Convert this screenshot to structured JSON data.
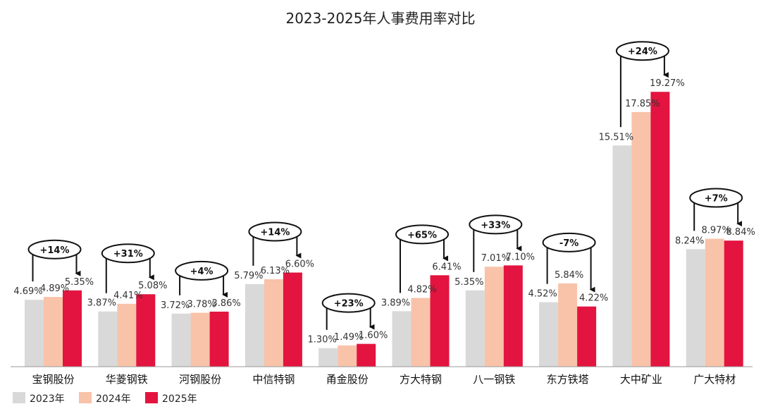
{
  "chart_data": {
    "type": "bar",
    "title": "2023-2025年人事费用率对比",
    "categories": [
      "宝钢股份",
      "华菱钢铁",
      "河钢股份",
      "中信特钢",
      "甬金股份",
      "方大特钢",
      "八一钢铁",
      "东方铁塔",
      "大中矿业",
      "广大特材"
    ],
    "series": [
      {
        "name": "2023年",
        "color": "#d9d9d9",
        "values": [
          4.69,
          3.87,
          3.72,
          5.79,
          1.3,
          3.89,
          5.35,
          4.52,
          15.51,
          8.24
        ],
        "labels": [
          "4.69%",
          "3.87%",
          "3.72%",
          "5.79%",
          "1.30%",
          "3.89%",
          "5.35%",
          "4.52%",
          "15.51%",
          "8.24%"
        ]
      },
      {
        "name": "2024年",
        "color": "#f8c3a9",
        "values": [
          4.89,
          4.41,
          3.78,
          6.13,
          1.49,
          4.82,
          7.01,
          5.84,
          17.85,
          8.97
        ],
        "labels": [
          "4.89%",
          "4.41%",
          "3.78%",
          "6.13%",
          "1.49%",
          "4.82%",
          "7.01%",
          "5.84%",
          "17.85%",
          "8.97%"
        ]
      },
      {
        "name": "2025年",
        "color": "#e3143f",
        "values": [
          5.35,
          5.08,
          3.86,
          6.6,
          1.6,
          6.41,
          7.1,
          4.22,
          19.27,
          8.84
        ],
        "labels": [
          "5.35%",
          "5.08%",
          "3.86%",
          "6.60%",
          "1.60%",
          "6.41%",
          "7.10%",
          "4.22%",
          "19.27%",
          "8.84%"
        ]
      }
    ],
    "changes": [
      "+14%",
      "+31%",
      "+4%",
      "+14%",
      "+23%",
      "+65%",
      "+33%",
      "-7%",
      "+24%",
      "+7%"
    ],
    "ylim": [
      0,
      22
    ],
    "grid": false,
    "legend": "bottom-left"
  }
}
